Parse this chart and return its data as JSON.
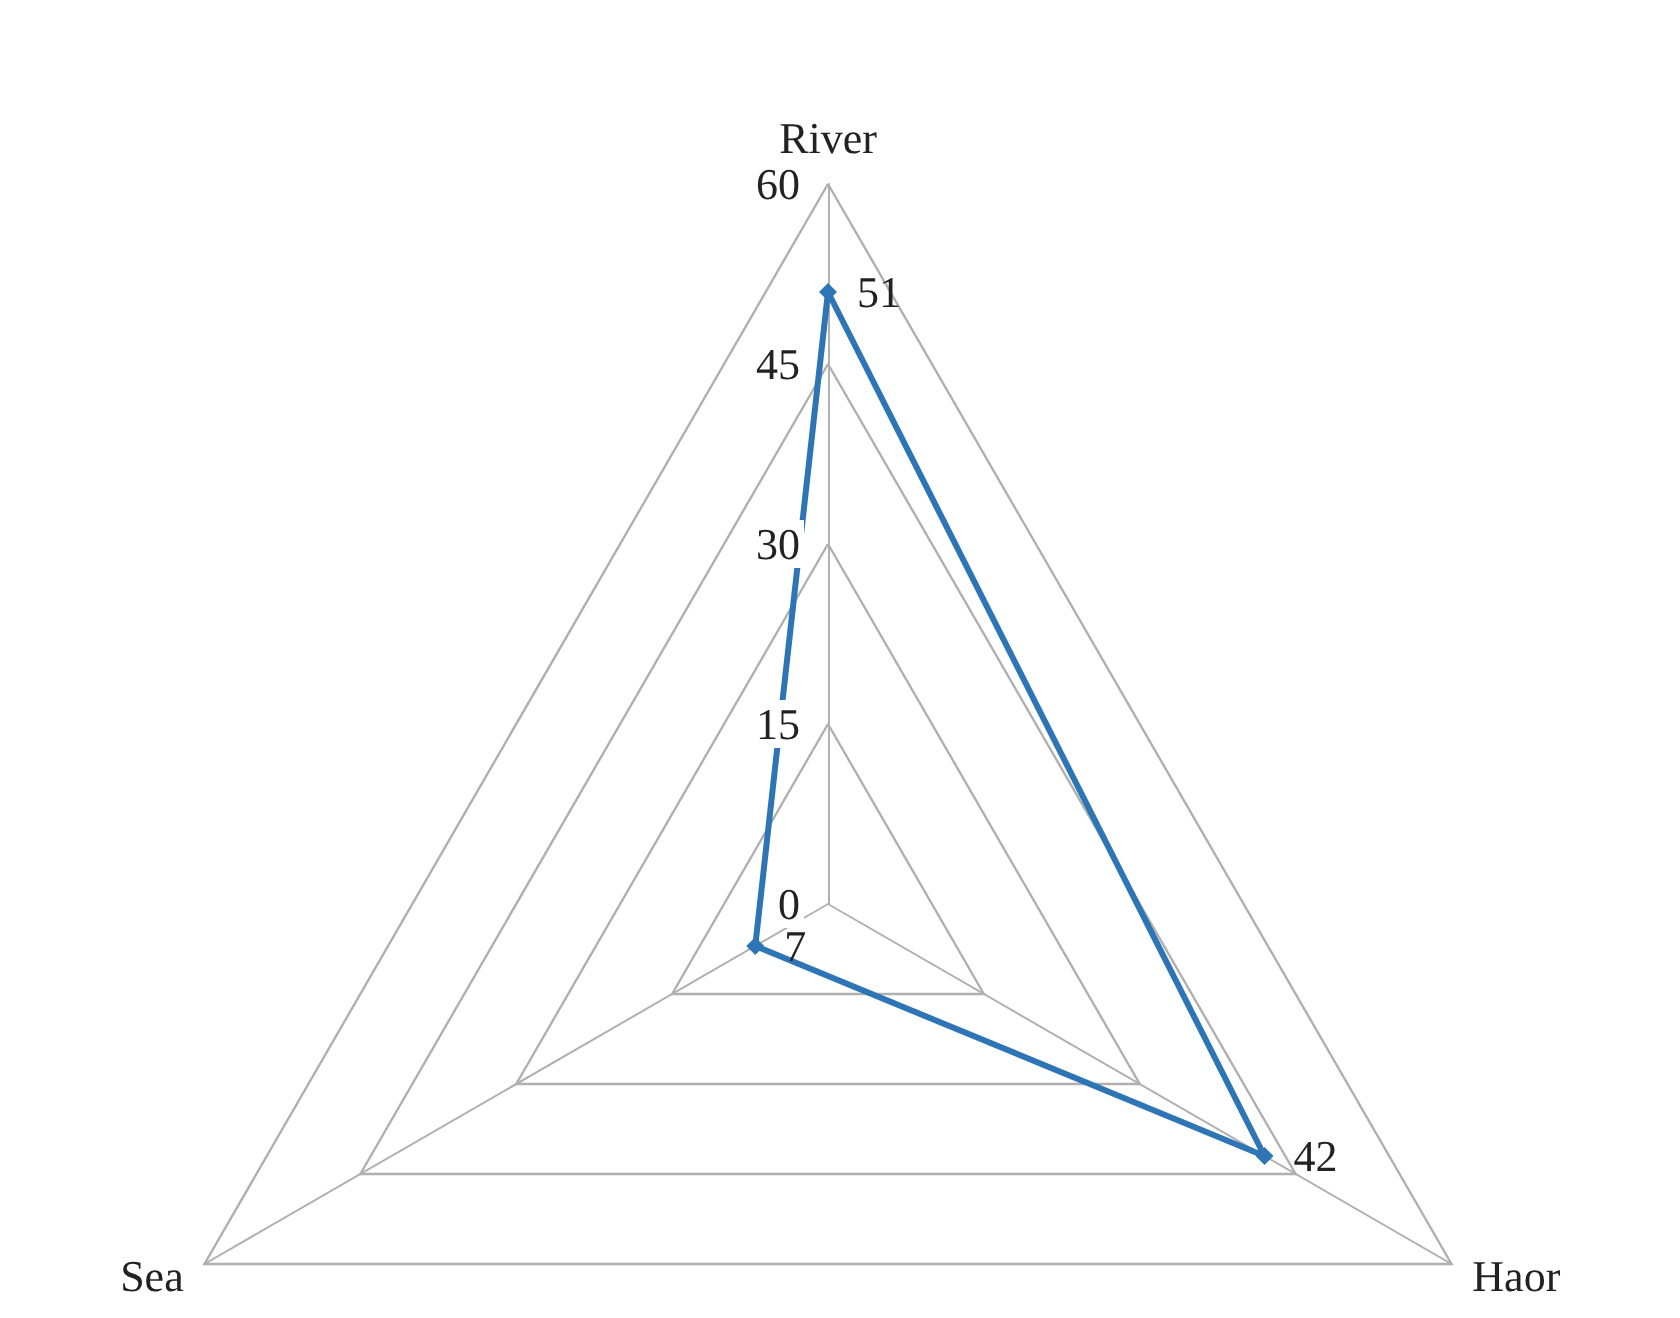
{
  "chart_data": {
    "type": "radar",
    "categories": [
      "River",
      "Haor",
      "Sea"
    ],
    "series": [
      {
        "color": "#2e75b6",
        "values": [
          51,
          42,
          7
        ]
      }
    ],
    "ylim": [
      0,
      60
    ],
    "yticks": [
      0,
      15,
      30,
      45,
      60
    ],
    "data_labels": true,
    "marker": "diamond",
    "grid": true
  }
}
